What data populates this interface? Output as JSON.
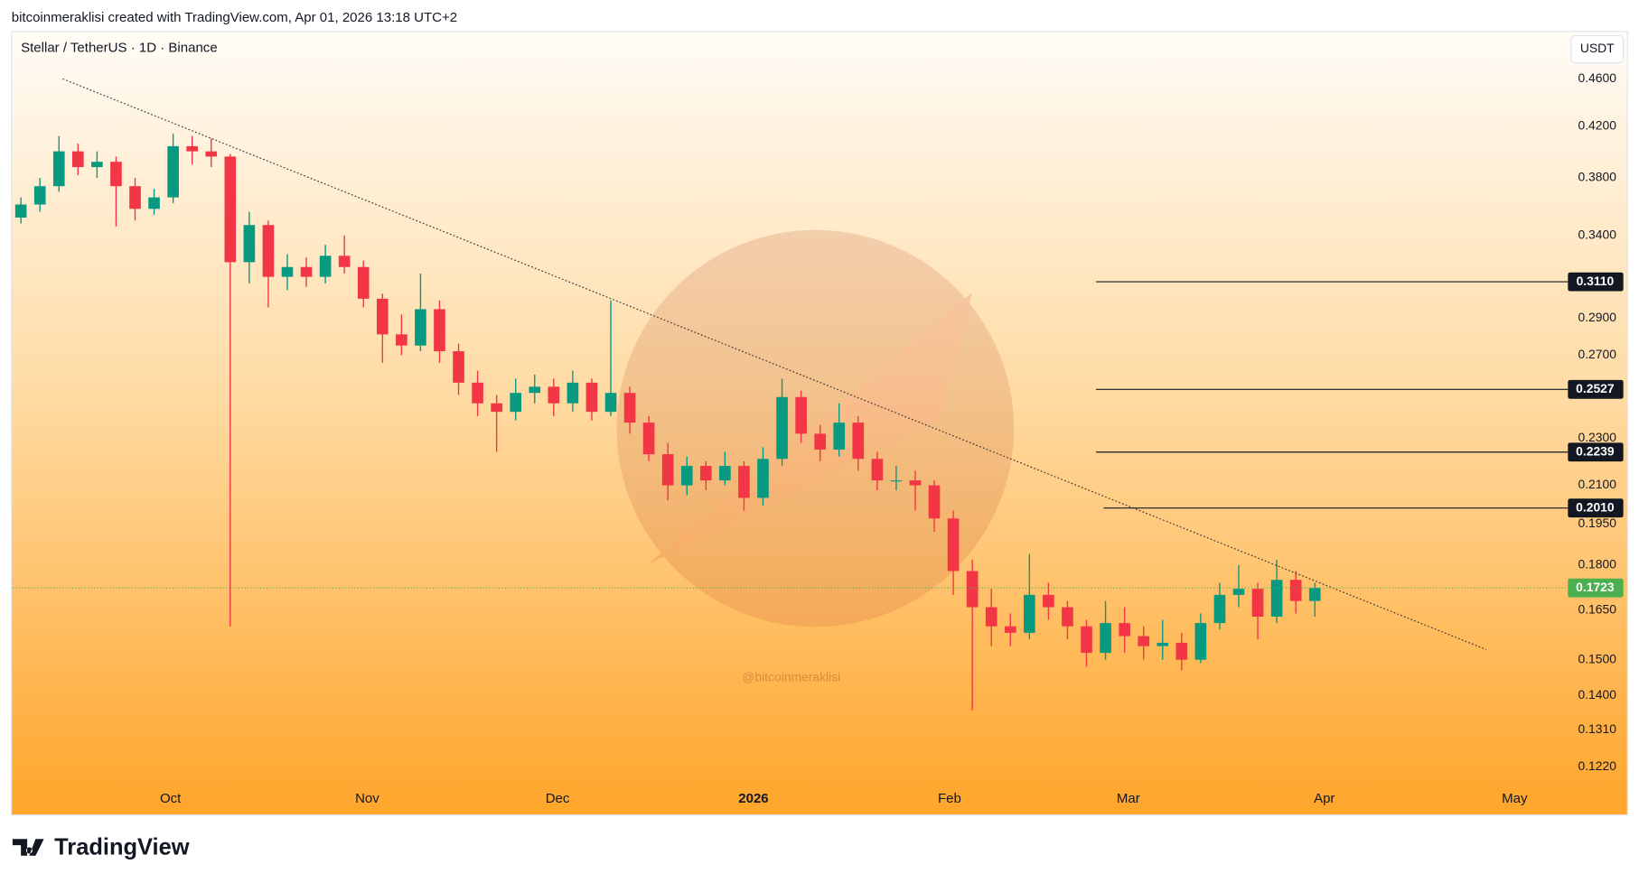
{
  "header": "bitcoinmeraklisi created with TradingView.com, Apr 01, 2026 13:18 UTC+2",
  "logo": "TradingView",
  "chart_data": {
    "type": "candlestick",
    "title": "Stellar / TetherUS · 1D · Binance",
    "currency": "USDT",
    "watermark": "@bitcoinmeraklisi",
    "up_color": "#089981",
    "down_color": "#f23645",
    "log_scale": true,
    "grid": false,
    "xlim": [
      -0.44,
      81.3
    ],
    "ylim": [
      0.1112,
      0.504
    ],
    "xticks": [
      {
        "value": 7.86,
        "label": "Oct"
      },
      {
        "value": 18.2,
        "label": "Nov"
      },
      {
        "value": 28.2,
        "label": "Dec"
      },
      {
        "value": 38.5,
        "label": "2026"
      },
      {
        "value": 48.8,
        "label": "Feb"
      },
      {
        "value": 58.2,
        "label": "Mar"
      },
      {
        "value": 68.5,
        "label": "Apr"
      },
      {
        "value": 78.5,
        "label": "May"
      }
    ],
    "yticks": [
      {
        "value": 0.46,
        "label": "0.4600"
      },
      {
        "value": 0.42,
        "label": "0.4200"
      },
      {
        "value": 0.38,
        "label": "0.3800"
      },
      {
        "value": 0.34,
        "label": "0.3400"
      },
      {
        "value": 0.29,
        "label": "0.2900"
      },
      {
        "value": 0.27,
        "label": "0.2700"
      },
      {
        "value": 0.23,
        "label": "0.2300"
      },
      {
        "value": 0.21,
        "label": "0.2100"
      },
      {
        "value": 0.195,
        "label": "0.1950"
      },
      {
        "value": 0.18,
        "label": "0.1800"
      },
      {
        "value": 0.165,
        "label": "0.1650"
      },
      {
        "value": 0.15,
        "label": "0.1500"
      },
      {
        "value": 0.14,
        "label": "0.1400"
      },
      {
        "value": 0.131,
        "label": "0.1310"
      },
      {
        "value": 0.122,
        "label": "0.1220"
      }
    ],
    "ohlc": [
      [
        0.352,
        0.366,
        0.348,
        0.361
      ],
      [
        0.361,
        0.38,
        0.356,
        0.374
      ],
      [
        0.374,
        0.412,
        0.37,
        0.4
      ],
      [
        0.4,
        0.406,
        0.382,
        0.388
      ],
      [
        0.388,
        0.4,
        0.38,
        0.392
      ],
      [
        0.392,
        0.396,
        0.346,
        0.374
      ],
      [
        0.374,
        0.38,
        0.35,
        0.358
      ],
      [
        0.358,
        0.372,
        0.354,
        0.366
      ],
      [
        0.366,
        0.414,
        0.362,
        0.404
      ],
      [
        0.404,
        0.412,
        0.39,
        0.4
      ],
      [
        0.4,
        0.41,
        0.388,
        0.396
      ],
      [
        0.396,
        0.398,
        0.16,
        0.323
      ],
      [
        0.323,
        0.356,
        0.31,
        0.347
      ],
      [
        0.347,
        0.35,
        0.296,
        0.314
      ],
      [
        0.314,
        0.328,
        0.306,
        0.32
      ],
      [
        0.32,
        0.326,
        0.308,
        0.314
      ],
      [
        0.314,
        0.334,
        0.31,
        0.327
      ],
      [
        0.327,
        0.34,
        0.316,
        0.32
      ],
      [
        0.32,
        0.324,
        0.296,
        0.301
      ],
      [
        0.301,
        0.304,
        0.266,
        0.281
      ],
      [
        0.281,
        0.292,
        0.27,
        0.275
      ],
      [
        0.275,
        0.316,
        0.272,
        0.295
      ],
      [
        0.295,
        0.3,
        0.266,
        0.272
      ],
      [
        0.272,
        0.276,
        0.25,
        0.256
      ],
      [
        0.256,
        0.262,
        0.24,
        0.246
      ],
      [
        0.246,
        0.25,
        0.224,
        0.242
      ],
      [
        0.242,
        0.258,
        0.238,
        0.251
      ],
      [
        0.251,
        0.26,
        0.246,
        0.254
      ],
      [
        0.254,
        0.258,
        0.24,
        0.246
      ],
      [
        0.246,
        0.262,
        0.242,
        0.256
      ],
      [
        0.256,
        0.258,
        0.238,
        0.242
      ],
      [
        0.242,
        0.3,
        0.24,
        0.251
      ],
      [
        0.251,
        0.254,
        0.232,
        0.237
      ],
      [
        0.237,
        0.24,
        0.22,
        0.223
      ],
      [
        0.223,
        0.228,
        0.204,
        0.21
      ],
      [
        0.21,
        0.222,
        0.206,
        0.218
      ],
      [
        0.218,
        0.22,
        0.208,
        0.212
      ],
      [
        0.212,
        0.224,
        0.21,
        0.218
      ],
      [
        0.218,
        0.22,
        0.2,
        0.205
      ],
      [
        0.205,
        0.226,
        0.202,
        0.221
      ],
      [
        0.221,
        0.258,
        0.218,
        0.249
      ],
      [
        0.249,
        0.252,
        0.228,
        0.232
      ],
      [
        0.232,
        0.236,
        0.22,
        0.225
      ],
      [
        0.225,
        0.246,
        0.222,
        0.237
      ],
      [
        0.237,
        0.24,
        0.216,
        0.221
      ],
      [
        0.221,
        0.224,
        0.208,
        0.212
      ],
      [
        0.212,
        0.218,
        0.208,
        0.212
      ],
      [
        0.212,
        0.216,
        0.2,
        0.21
      ],
      [
        0.21,
        0.212,
        0.192,
        0.197
      ],
      [
        0.197,
        0.2,
        0.17,
        0.178
      ],
      [
        0.178,
        0.182,
        0.136,
        0.166
      ],
      [
        0.166,
        0.172,
        0.154,
        0.16
      ],
      [
        0.16,
        0.164,
        0.154,
        0.158
      ],
      [
        0.158,
        0.184,
        0.156,
        0.17
      ],
      [
        0.17,
        0.174,
        0.162,
        0.166
      ],
      [
        0.166,
        0.168,
        0.156,
        0.16
      ],
      [
        0.16,
        0.162,
        0.148,
        0.152
      ],
      [
        0.152,
        0.168,
        0.15,
        0.161
      ],
      [
        0.161,
        0.166,
        0.152,
        0.157
      ],
      [
        0.157,
        0.16,
        0.15,
        0.154
      ],
      [
        0.154,
        0.162,
        0.15,
        0.155
      ],
      [
        0.155,
        0.158,
        0.147,
        0.15
      ],
      [
        0.15,
        0.164,
        0.149,
        0.161
      ],
      [
        0.161,
        0.174,
        0.159,
        0.17
      ],
      [
        0.17,
        0.18,
        0.166,
        0.172
      ],
      [
        0.172,
        0.174,
        0.156,
        0.163
      ],
      [
        0.163,
        0.182,
        0.161,
        0.175
      ],
      [
        0.175,
        0.178,
        0.164,
        0.168
      ],
      [
        0.168,
        0.174,
        0.163,
        0.1723
      ]
    ],
    "last_price": 0.1723,
    "last_price_color": "#4caf50",
    "trendline": {
      "x": [
        2.2,
        77.0
      ],
      "y": [
        0.46,
        0.153
      ]
    },
    "levels": [
      {
        "value": 0.311,
        "label": "0.3110",
        "start": 56.5
      },
      {
        "value": 0.2527,
        "label": "0.2527",
        "start": 56.5
      },
      {
        "value": 0.2239,
        "label": "0.2239",
        "start": 56.5
      },
      {
        "value": 0.201,
        "label": "0.2010",
        "start": 56.9
      }
    ]
  }
}
